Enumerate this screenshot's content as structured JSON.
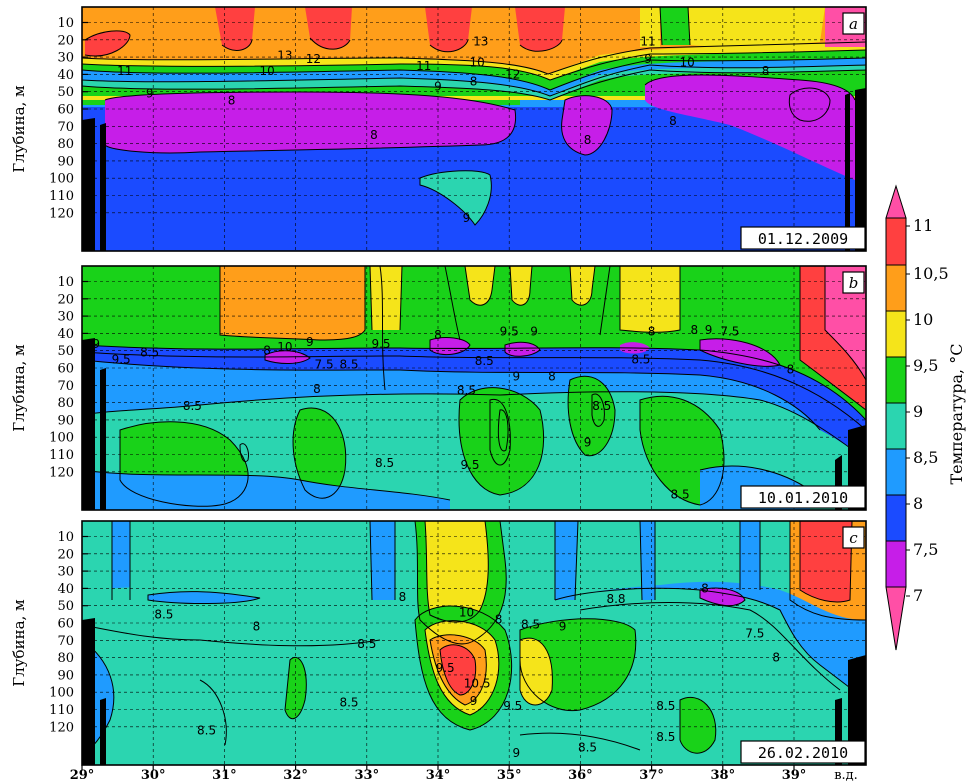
{
  "chart_data": [
    {
      "type": "heatmap",
      "panel_letter": "a",
      "date": "01.12.2009",
      "ylabel": "Глубина, м",
      "yticks": [
        10,
        20,
        30,
        40,
        50,
        60,
        70,
        80,
        90,
        100,
        110,
        120
      ],
      "ylim": [
        0,
        130
      ],
      "xlim": [
        29,
        40
      ],
      "contour_labels": [
        {
          "x": 31.85,
          "y": 29,
          "t": "13"
        },
        {
          "x": 34.6,
          "y": 21,
          "t": "13"
        },
        {
          "x": 36.95,
          "y": 21,
          "t": "11"
        },
        {
          "x": 29.6,
          "y": 38,
          "t": "11"
        },
        {
          "x": 31.6,
          "y": 38,
          "t": "10"
        },
        {
          "x": 32.25,
          "y": 31,
          "t": "12"
        },
        {
          "x": 33.8,
          "y": 35,
          "t": "11"
        },
        {
          "x": 34.55,
          "y": 33,
          "t": "10"
        },
        {
          "x": 35.05,
          "y": 40,
          "t": "12"
        },
        {
          "x": 36.95,
          "y": 31,
          "t": "9"
        },
        {
          "x": 37.5,
          "y": 33,
          "t": "10"
        },
        {
          "x": 38.6,
          "y": 38,
          "t": "8"
        },
        {
          "x": 29.95,
          "y": 51,
          "t": "9"
        },
        {
          "x": 31.1,
          "y": 55,
          "t": "8"
        },
        {
          "x": 34.0,
          "y": 47,
          "t": "9"
        },
        {
          "x": 34.5,
          "y": 44,
          "t": "8"
        },
        {
          "x": 37.3,
          "y": 67,
          "t": "8"
        },
        {
          "x": 36.1,
          "y": 78,
          "t": "8"
        },
        {
          "x": 33.1,
          "y": 75,
          "t": "8"
        },
        {
          "x": 34.4,
          "y": 123,
          "t": "9"
        }
      ]
    },
    {
      "type": "heatmap",
      "panel_letter": "b",
      "date": "10.01.2010",
      "ylabel": "Глубина, м",
      "yticks": [
        10,
        20,
        30,
        40,
        50,
        60,
        70,
        80,
        90,
        100,
        110,
        120
      ],
      "ylim": [
        0,
        130
      ],
      "xlim": [
        29,
        40
      ],
      "contour_labels": [
        {
          "x": 29.2,
          "y": 46,
          "t": "9"
        },
        {
          "x": 29.55,
          "y": 55,
          "t": "9.5"
        },
        {
          "x": 29.95,
          "y": 51,
          "t": "8.5"
        },
        {
          "x": 31.6,
          "y": 50,
          "t": "8"
        },
        {
          "x": 31.85,
          "y": 48,
          "t": "10"
        },
        {
          "x": 32.2,
          "y": 45,
          "t": "9"
        },
        {
          "x": 32.4,
          "y": 58,
          "t": "7.5"
        },
        {
          "x": 32.75,
          "y": 58,
          "t": "8.5"
        },
        {
          "x": 33.2,
          "y": 46,
          "t": "9.5"
        },
        {
          "x": 34.0,
          "y": 41,
          "t": "8"
        },
        {
          "x": 35.0,
          "y": 39,
          "t": "9.5"
        },
        {
          "x": 35.35,
          "y": 39,
          "t": "9"
        },
        {
          "x": 37.0,
          "y": 39,
          "t": "8"
        },
        {
          "x": 37.6,
          "y": 38,
          "t": "8"
        },
        {
          "x": 37.8,
          "y": 38,
          "t": "9"
        },
        {
          "x": 38.1,
          "y": 39,
          "t": "7.5"
        },
        {
          "x": 34.65,
          "y": 56,
          "t": "8.5"
        },
        {
          "x": 34.4,
          "y": 73,
          "t": "8.5"
        },
        {
          "x": 35.1,
          "y": 65,
          "t": "9"
        },
        {
          "x": 35.6,
          "y": 65,
          "t": "8"
        },
        {
          "x": 36.85,
          "y": 55,
          "t": "8.5"
        },
        {
          "x": 38.95,
          "y": 61,
          "t": "8"
        },
        {
          "x": 32.3,
          "y": 72,
          "t": "8"
        },
        {
          "x": 30.55,
          "y": 82,
          "t": "8.5"
        },
        {
          "x": 36.3,
          "y": 82,
          "t": "8.5"
        },
        {
          "x": 36.1,
          "y": 103,
          "t": "9"
        },
        {
          "x": 34.45,
          "y": 116,
          "t": "9.5"
        },
        {
          "x": 33.25,
          "y": 115,
          "t": "8.5"
        },
        {
          "x": 37.4,
          "y": 133,
          "t": "8.5"
        }
      ]
    },
    {
      "type": "heatmap",
      "panel_letter": "c",
      "date": "26.02.2010",
      "ylabel": "Глубина, м",
      "yticks": [
        10,
        20,
        30,
        40,
        50,
        60,
        70,
        80,
        90,
        100,
        110,
        120
      ],
      "ylim": [
        0,
        130
      ],
      "xlim": [
        29,
        40
      ],
      "contour_labels": [
        {
          "x": 30.15,
          "y": 55,
          "t": "8.5"
        },
        {
          "x": 31.45,
          "y": 62,
          "t": "8"
        },
        {
          "x": 33.5,
          "y": 45,
          "t": "8"
        },
        {
          "x": 33.0,
          "y": 72,
          "t": "8.5"
        },
        {
          "x": 34.4,
          "y": 54,
          "t": "10"
        },
        {
          "x": 34.1,
          "y": 86,
          "t": "9.5"
        },
        {
          "x": 34.55,
          "y": 95,
          "t": "10.5"
        },
        {
          "x": 34.5,
          "y": 105,
          "t": "9"
        },
        {
          "x": 34.85,
          "y": 58,
          "t": "8"
        },
        {
          "x": 35.3,
          "y": 61,
          "t": "8.5"
        },
        {
          "x": 35.75,
          "y": 62,
          "t": "9"
        },
        {
          "x": 36.5,
          "y": 46,
          "t": "8.8"
        },
        {
          "x": 37.75,
          "y": 40,
          "t": "8"
        },
        {
          "x": 38.45,
          "y": 66,
          "t": "7.5"
        },
        {
          "x": 38.75,
          "y": 80,
          "t": "8"
        },
        {
          "x": 32.75,
          "y": 106,
          "t": "8.5"
        },
        {
          "x": 30.75,
          "y": 122,
          "t": "8.5"
        },
        {
          "x": 35.05,
          "y": 108,
          "t": "9.5"
        },
        {
          "x": 35.1,
          "y": 135,
          "t": "9"
        },
        {
          "x": 36.1,
          "y": 132,
          "t": "8.5"
        },
        {
          "x": 37.2,
          "y": 108,
          "t": "8.5"
        },
        {
          "x": 37.2,
          "y": 126,
          "t": "8.5"
        }
      ]
    }
  ],
  "xaxis": {
    "ticks": [
      "29°",
      "30°",
      "31°",
      "32°",
      "33°",
      "34°",
      "35°",
      "36°",
      "37°",
      "38°",
      "39°"
    ],
    "unit": "в.д."
  },
  "colorbar": {
    "label": "Температура, °С",
    "ticks": [
      "11",
      "10,5",
      "10",
      "9,5",
      "9",
      "8,5",
      "8",
      "7,5",
      "7"
    ],
    "colors": {
      "t11": "#ff4fa6",
      "t10_5": "#ff4040",
      "t10": "#ff9e1a",
      "t9_5": "#f5e41a",
      "t9": "#19d219",
      "t8_5": "#2bd5b0",
      "t8": "#1f9bff",
      "t7_5": "#1b4bff",
      "t7": "#c61ee8"
    }
  }
}
